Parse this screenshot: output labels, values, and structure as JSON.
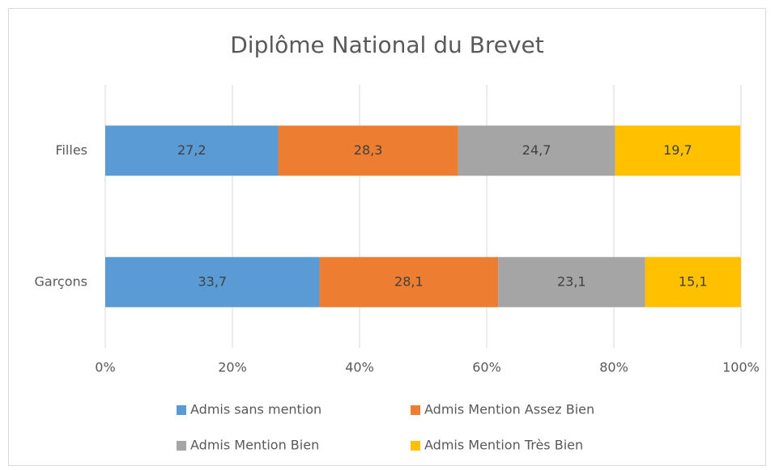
{
  "chart_data": {
    "type": "stacked-barh",
    "title": "Diplôme National du Brevet",
    "categories": [
      "Filles",
      "Garçons"
    ],
    "series": [
      {
        "name": "Admis sans mention",
        "color": "#5b9bd5",
        "values": [
          27.2,
          33.7
        ],
        "value_labels": [
          "27,2",
          "33,7"
        ]
      },
      {
        "name": "Admis Mention Assez Bien",
        "color": "#ed7d31",
        "values": [
          28.3,
          28.1
        ],
        "value_labels": [
          "28,3",
          "28,1"
        ]
      },
      {
        "name": "Admis Mention Bien",
        "color": "#a5a5a5",
        "values": [
          24.7,
          23.1
        ],
        "value_labels": [
          "24,7",
          "23,1"
        ]
      },
      {
        "name": "Admis Mention Très Bien",
        "color": "#ffc000",
        "values": [
          19.7,
          15.1
        ],
        "value_labels": [
          "19,7",
          "15,1"
        ]
      }
    ],
    "xlim": [
      0,
      100
    ],
    "xticks": [
      {
        "value": 0,
        "label": "0%"
      },
      {
        "value": 20,
        "label": "20%"
      },
      {
        "value": 40,
        "label": "40%"
      },
      {
        "value": 60,
        "label": "60%"
      },
      {
        "value": 80,
        "label": "80%"
      },
      {
        "value": 100,
        "label": "100%"
      }
    ],
    "grid": true,
    "legend": "bottom"
  }
}
